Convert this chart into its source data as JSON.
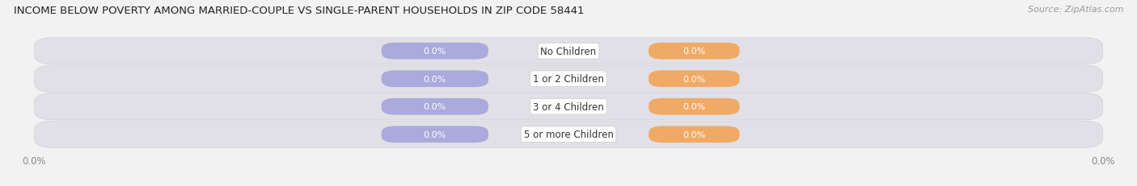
{
  "title": "INCOME BELOW POVERTY AMONG MARRIED-COUPLE VS SINGLE-PARENT HOUSEHOLDS IN ZIP CODE 58441",
  "source": "Source: ZipAtlas.com",
  "categories": [
    "No Children",
    "1 or 2 Children",
    "3 or 4 Children",
    "5 or more Children"
  ],
  "married_values": [
    0.0,
    0.0,
    0.0,
    0.0
  ],
  "single_values": [
    0.0,
    0.0,
    0.0,
    0.0
  ],
  "married_color": "#aaaadd",
  "single_color": "#f0aa66",
  "background_color": "#f2f2f2",
  "row_color": "#e0e0e6",
  "bar_height": 0.6,
  "title_fontsize": 9.5,
  "source_fontsize": 8,
  "label_fontsize": 8,
  "tick_fontsize": 8.5,
  "value_label_color": "#ffffff",
  "category_label_color": "#333333",
  "axis_label_color": "#888888",
  "left_tick": "0.0%",
  "right_tick": "0.0%"
}
